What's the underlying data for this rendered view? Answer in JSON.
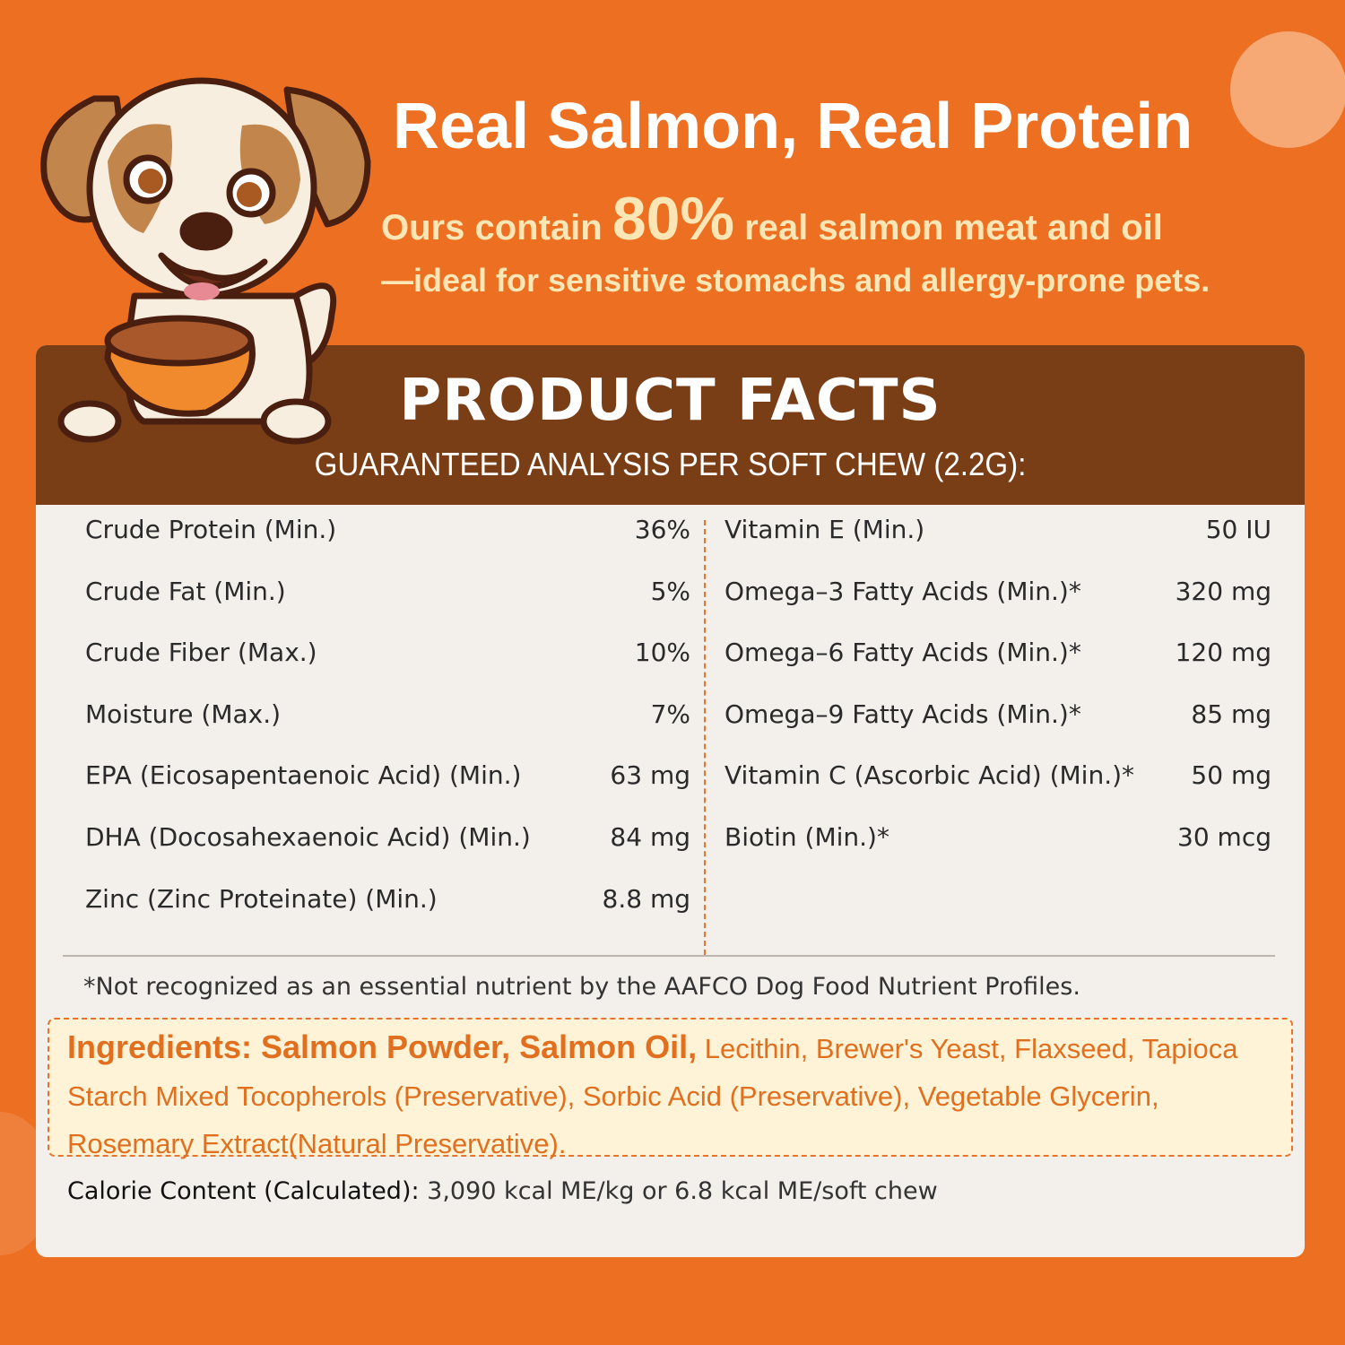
{
  "header": {
    "title": "Real Salmon, Real Protein",
    "subtitle_pre": "Ours contain",
    "subtitle_percent": "80%",
    "subtitle_post": "real salmon meat and oil",
    "subtitle_line2": "—ideal for sensitive stomachs and allergy-prone pets."
  },
  "panel": {
    "title": "PRODUCT FACTS",
    "subtitle": "GUARANTEED ANALYSIS PER SOFT CHEW (2.2G):",
    "left_rows": [
      {
        "label": "Crude Protein (Min.)",
        "value": "36%"
      },
      {
        "label": "Crude Fat (Min.)",
        "value": "5%"
      },
      {
        "label": "Crude Fiber (Max.)",
        "value": "10%"
      },
      {
        "label": "Moisture (Max.)",
        "value": "7%"
      },
      {
        "label": "EPA (Eicosapentaenoic Acid) (Min.)",
        "value": "63 mg"
      },
      {
        "label": "DHA (Docosahexaenoic Acid) (Min.)",
        "value": "84 mg"
      },
      {
        "label": "Zinc (Zinc Proteinate) (Min.)",
        "value": "8.8 mg"
      }
    ],
    "right_rows": [
      {
        "label": "Vitamin E (Min.)",
        "value": "50 IU"
      },
      {
        "label": "Omega–3 Fatty Acids (Min.)*",
        "value": "320 mg"
      },
      {
        "label": "Omega–6 Fatty Acids (Min.)*",
        "value": "120 mg"
      },
      {
        "label": "Omega–9 Fatty Acids (Min.)*",
        "value": "85 mg"
      },
      {
        "label": "Vitamin C (Ascorbic Acid) (Min.)*",
        "value": "50 mg"
      },
      {
        "label": "Biotin (Min.)*",
        "value": "30 mcg"
      }
    ],
    "footnote": "*Not recognized as an essential nutrient by the AAFCO Dog Food Nutrient Profiles.",
    "ingredients_bold": "Ingredients: Salmon Powder, Salmon Oil,",
    "ingredients_rest": " Lecithin, Brewer's Yeast, Flaxseed, Tapioca Starch Mixed Tocopherols (Preservative), Sorbic Acid (Preservative), Vegetable Glycerin, Rosemary Extract(Natural Preservative).",
    "calorie_label": "Calorie Content (Calculated):",
    "calorie_value": " 3,090 kcal ME/kg or 6.8 kcal ME/soft chew"
  },
  "colors": {
    "background": "#EC6F22",
    "header": "#7A3E17",
    "panel": "#F3EFEA",
    "accent": "#E0701F",
    "cream": "#FDE6B5"
  },
  "illustration": "cartoon-puppy-with-food-bowl"
}
